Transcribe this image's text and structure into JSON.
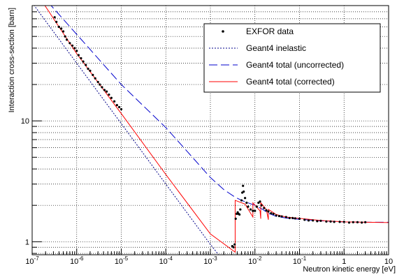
{
  "chart_data": {
    "type": "line",
    "xlabel": "Neutron kinetic energy [eV]",
    "ylabel": "Interaction cross-section [barn]",
    "x_scale": "log",
    "y_scale": "log",
    "xlim": [
      1e-07,
      10
    ],
    "ylim": [
      0.78,
      90
    ],
    "grid": true,
    "legend_position": "top-right",
    "x_ticks": [
      {
        "value": 1e-07,
        "base": "10",
        "exp": "-7"
      },
      {
        "value": 1e-06,
        "base": "10",
        "exp": "-6"
      },
      {
        "value": 1e-05,
        "base": "10",
        "exp": "-5"
      },
      {
        "value": 0.0001,
        "base": "10",
        "exp": "-4"
      },
      {
        "value": 0.001,
        "base": "10",
        "exp": "-3"
      },
      {
        "value": 0.01,
        "base": "10",
        "exp": "-2"
      },
      {
        "value": 0.1,
        "base": "10",
        "exp": "-1"
      },
      {
        "value": 1,
        "text": "1"
      },
      {
        "value": 10,
        "text": "10"
      }
    ],
    "y_ticks": [
      {
        "value": 1,
        "text": "1"
      },
      {
        "value": 10,
        "text": "10"
      }
    ],
    "series": [
      {
        "name": "Geant4 total (uncorrected)",
        "style": "long-dash",
        "color": "#0000cc",
        "points": [
          [
            1e-07,
            135
          ],
          [
            1e-06,
            52
          ],
          [
            1e-05,
            20
          ],
          [
            0.0001,
            8.8
          ],
          [
            0.0003,
            5.6
          ],
          [
            0.001,
            3.4
          ],
          [
            0.002,
            2.7
          ],
          [
            0.0035,
            2.35
          ],
          [
            0.005,
            2.2
          ],
          [
            0.007,
            2.1
          ],
          [
            0.01,
            2.0
          ],
          [
            0.015,
            1.85
          ],
          [
            0.02,
            1.72
          ],
          [
            0.03,
            1.62
          ],
          [
            0.05,
            1.57
          ],
          [
            0.1,
            1.53
          ],
          [
            0.3,
            1.49
          ],
          [
            1,
            1.46
          ],
          [
            3,
            1.45
          ],
          [
            10,
            1.45
          ]
        ]
      },
      {
        "name": "Geant4 inelastic",
        "style": "dotted",
        "color": "#000088",
        "points": [
          [
            1e-07,
            95
          ],
          [
            1e-06,
            30
          ],
          [
            1e-05,
            9.5
          ],
          [
            0.0001,
            3.0
          ],
          [
            0.001,
            0.95
          ],
          [
            0.004,
            0.5
          ]
        ]
      },
      {
        "name": "Geant4 total (corrected)",
        "style": "solid",
        "color": "#ff0000",
        "points": [
          [
            1e-07,
            130
          ],
          [
            1e-06,
            36
          ],
          [
            1e-05,
            11.5
          ],
          [
            0.0001,
            3.6
          ],
          [
            0.001,
            1.16
          ],
          [
            0.0036,
            0.82
          ],
          [
            0.0036,
            2.2
          ],
          [
            0.006,
            2.05
          ],
          [
            0.009,
            1.6
          ],
          [
            0.009,
            2.1
          ],
          [
            0.013,
            1.8
          ],
          [
            0.0135,
            1.55
          ],
          [
            0.0135,
            2.1
          ],
          [
            0.018,
            1.85
          ],
          [
            0.02,
            1.52
          ],
          [
            0.02,
            1.85
          ],
          [
            0.03,
            1.68
          ],
          [
            0.05,
            1.6
          ],
          [
            0.1,
            1.56
          ],
          [
            0.3,
            1.5
          ],
          [
            1,
            1.46
          ],
          [
            10,
            1.44
          ]
        ]
      },
      {
        "name": "EXFOR data",
        "style": "markers",
        "color": "#000000",
        "points": [
          [
            3.2e-07,
            72
          ],
          [
            3.5e-07,
            66
          ],
          [
            4e-07,
            60
          ],
          [
            4.5e-07,
            58
          ],
          [
            5e-07,
            55
          ],
          [
            5.5e-07,
            50
          ],
          [
            6e-07,
            47
          ],
          [
            7e-07,
            44
          ],
          [
            8e-07,
            42
          ],
          [
            9e-07,
            40
          ],
          [
            1e-06,
            38
          ],
          [
            1.1e-06,
            35
          ],
          [
            1.25e-06,
            33
          ],
          [
            1.4e-06,
            31
          ],
          [
            1.6e-06,
            29
          ],
          [
            1.8e-06,
            27
          ],
          [
            2e-06,
            26
          ],
          [
            2.3e-06,
            24
          ],
          [
            2.6e-06,
            22.5
          ],
          [
            3e-06,
            21
          ],
          [
            3.3e-06,
            20
          ],
          [
            3.7e-06,
            19
          ],
          [
            4.2e-06,
            18
          ],
          [
            4.7e-06,
            17.5
          ],
          [
            5.3e-06,
            16.5
          ],
          [
            6e-06,
            15.5
          ],
          [
            7e-06,
            14.5
          ],
          [
            8e-06,
            13.5
          ],
          [
            9e-06,
            13
          ],
          [
            1e-05,
            12.5
          ],
          [
            0.0031,
            0.92
          ],
          [
            0.0033,
            0.9
          ],
          [
            0.0035,
            0.95
          ],
          [
            0.0037,
            1.55
          ],
          [
            0.0039,
            1.7
          ],
          [
            0.0041,
            1.75
          ],
          [
            0.0043,
            1.7
          ],
          [
            0.0045,
            1.68
          ],
          [
            0.0047,
            1.85
          ],
          [
            0.005,
            2.2
          ],
          [
            0.0052,
            2.55
          ],
          [
            0.0054,
            2.9
          ],
          [
            0.0056,
            2.6
          ],
          [
            0.006,
            2.3
          ],
          [
            0.0065,
            2.1
          ],
          [
            0.007,
            1.95
          ],
          [
            0.008,
            1.85
          ],
          [
            0.009,
            1.8
          ],
          [
            0.01,
            1.8
          ],
          [
            0.011,
            1.95
          ],
          [
            0.012,
            2.1
          ],
          [
            0.013,
            2.15
          ],
          [
            0.014,
            2.0
          ],
          [
            0.016,
            1.9
          ],
          [
            0.018,
            1.82
          ],
          [
            0.02,
            1.78
          ],
          [
            0.023,
            1.72
          ],
          [
            0.026,
            1.7
          ],
          [
            0.03,
            1.65
          ],
          [
            0.035,
            1.63
          ],
          [
            0.04,
            1.62
          ],
          [
            0.05,
            1.6
          ],
          [
            0.06,
            1.57
          ],
          [
            0.07,
            1.57
          ],
          [
            0.08,
            1.56
          ],
          [
            0.1,
            1.55
          ],
          [
            0.13,
            1.52
          ],
          [
            0.16,
            1.5
          ],
          [
            0.2,
            1.5
          ],
          [
            0.25,
            1.48
          ],
          [
            0.3,
            1.49
          ],
          [
            0.4,
            1.47
          ],
          [
            0.5,
            1.47
          ],
          [
            0.6,
            1.46
          ],
          [
            0.8,
            1.46
          ],
          [
            1.0,
            1.46
          ],
          [
            1.3,
            1.44
          ],
          [
            1.6,
            1.45
          ],
          [
            2.0,
            1.45
          ],
          [
            2.5,
            1.44
          ],
          [
            3.0,
            1.45
          ]
        ]
      }
    ]
  }
}
